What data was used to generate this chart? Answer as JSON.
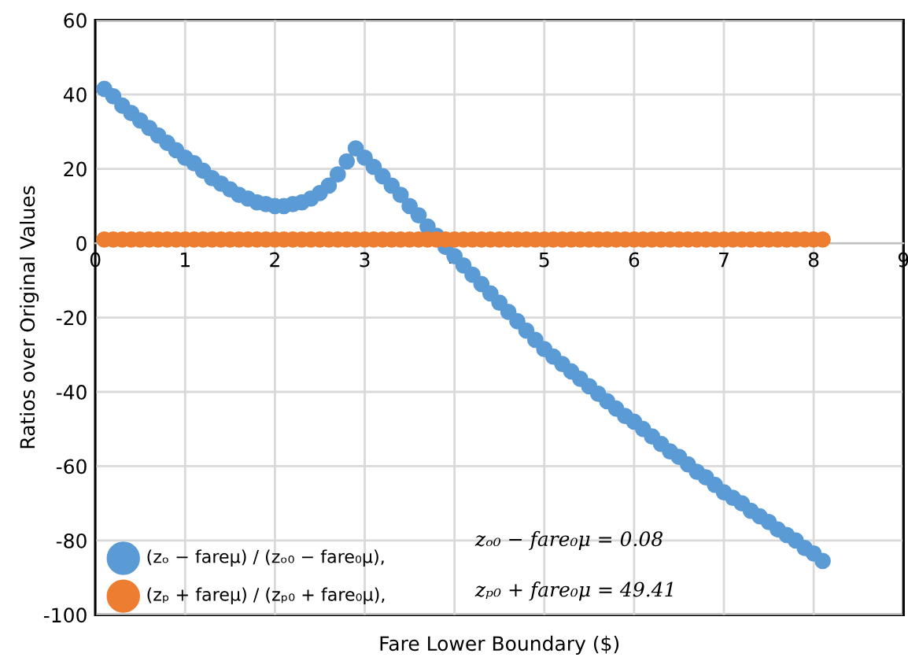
{
  "chart_data": {
    "type": "scatter",
    "xlabel": "Fare Lower Boundary ($)",
    "ylabel": "Ratios over Original Values",
    "x": [
      0.1,
      0.2,
      0.3,
      0.4,
      0.5,
      0.6,
      0.7,
      0.8,
      0.9,
      1.0,
      1.1,
      1.2,
      1.3,
      1.4,
      1.5,
      1.6,
      1.7,
      1.8,
      1.9,
      2.0,
      2.1,
      2.2,
      2.3,
      2.4,
      2.5,
      2.6,
      2.7,
      2.8,
      2.9,
      3.0,
      3.1,
      3.2,
      3.3,
      3.4,
      3.5,
      3.6,
      3.7,
      3.8,
      3.9,
      4.0,
      4.1,
      4.2,
      4.3,
      4.4,
      4.5,
      4.6,
      4.7,
      4.8,
      4.9,
      5.0,
      5.1,
      5.2,
      5.3,
      5.4,
      5.5,
      5.6,
      5.7,
      5.8,
      5.9,
      6.0,
      6.1,
      6.2,
      6.3,
      6.4,
      6.5,
      6.6,
      6.7,
      6.8,
      6.9,
      7.0,
      7.1,
      7.2,
      7.3,
      7.4,
      7.5,
      7.6,
      7.7,
      7.8,
      7.9,
      8.0,
      8.1
    ],
    "series": [
      {
        "name": "(zₒ − fareμ) / (zₒ₀ − fare₀μ),",
        "color": "#5b9bd5",
        "values": [
          41.5,
          39.5,
          37,
          35,
          33,
          31,
          29,
          27,
          25,
          23,
          21.5,
          19.5,
          17.5,
          16,
          14.5,
          13,
          12,
          11,
          10.5,
          10,
          10,
          10.5,
          11,
          12,
          13.5,
          15.5,
          18.5,
          22,
          25.5,
          23,
          20.5,
          18,
          15.5,
          13,
          10,
          7.5,
          4.5,
          2,
          -1,
          -3.5,
          -6,
          -8.5,
          -11,
          -13.5,
          -16,
          -18.5,
          -21,
          -23.5,
          -26,
          -28.5,
          -30.5,
          -32.5,
          -34.5,
          -36.5,
          -38.5,
          -40.5,
          -42.5,
          -44.5,
          -46.5,
          -48,
          -50,
          -52,
          -54,
          -56,
          -57.5,
          -59.5,
          -61.5,
          -63,
          -65,
          -67,
          -68.5,
          -70,
          -72,
          -73.5,
          -75,
          -77,
          -78.5,
          -80,
          -82,
          -83.5,
          -85.5
        ]
      },
      {
        "name": "(zₚ + fareμ) / (zₚ₀ + fare₀μ),",
        "color": "#ed7d31",
        "values": [
          1,
          1,
          1,
          1,
          1,
          1,
          1,
          1,
          1,
          1,
          1,
          1,
          1,
          1,
          1,
          1,
          1,
          1,
          1,
          1,
          1,
          1,
          1,
          1,
          1,
          1,
          1,
          1,
          1,
          1,
          1,
          1,
          1,
          1,
          1,
          1,
          1,
          1,
          1,
          1,
          1,
          1,
          1,
          1,
          1,
          1,
          1,
          1,
          1,
          1,
          1,
          1,
          1,
          1,
          1,
          1,
          1,
          1,
          1,
          1,
          1,
          1,
          1,
          1,
          1,
          1,
          1,
          1,
          1,
          1,
          1,
          1,
          1,
          1,
          1,
          1,
          1,
          1,
          1,
          1,
          1
        ]
      }
    ],
    "annotations": [
      "zₒ₀ − fare₀μ = 0.08",
      "zₚ₀ + fare₀μ = 49.41"
    ],
    "xlim": [
      0,
      9
    ],
    "xticks": [
      0,
      1,
      2,
      3,
      4,
      5,
      6,
      7,
      8,
      9
    ],
    "ylim": [
      -100,
      60
    ],
    "yticks": [
      -100,
      -80,
      -60,
      -40,
      -20,
      0,
      20,
      40,
      60
    ],
    "grid": true,
    "legend": "bottom left",
    "marker": "circle"
  }
}
